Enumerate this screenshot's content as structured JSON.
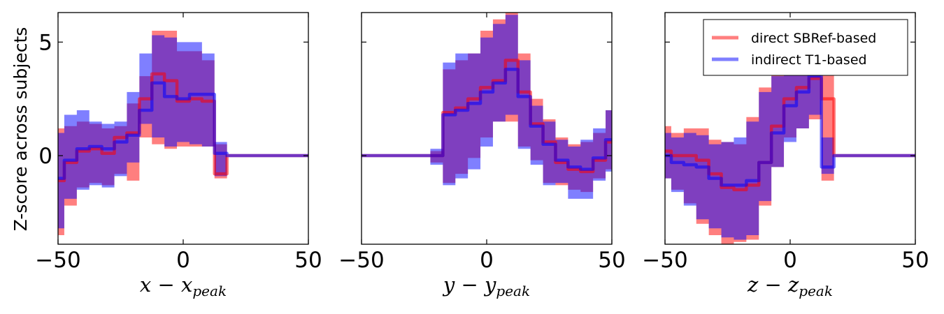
{
  "figure": {
    "ylabel": "Z-score across subjects"
  },
  "colors": {
    "direct": "#ff0000",
    "indirect": "#0000ff",
    "overlap_fill": "#7d3cc0"
  },
  "chart_data": [
    {
      "type": "area",
      "panel": "x",
      "xlabel": "x − x_peak",
      "xlabel_main": "x − x",
      "xlabel_sub": "peak",
      "xlim": [
        -50,
        50
      ],
      "ylim": [
        -3.9,
        6.3
      ],
      "xticks": [
        -50,
        0,
        50
      ],
      "xtick_labels": [
        "−50",
        "0",
        "50"
      ],
      "yticks": [
        5,
        0
      ],
      "ytick_labels": [
        "5",
        "0"
      ],
      "show_legend": false,
      "x": [
        -50,
        -45,
        -40,
        -35,
        -30,
        -25,
        -20,
        -15,
        -10,
        -5,
        0,
        5,
        10,
        15,
        20,
        25,
        30,
        35,
        40,
        45,
        50
      ],
      "series": [
        {
          "name": "direct SBRef-based",
          "mean": [
            -1.1,
            -0.3,
            0.2,
            0.3,
            0.1,
            0.8,
            1.0,
            2.5,
            3.6,
            3.3,
            2.4,
            2.5,
            2.4,
            -0.8,
            0,
            0,
            0,
            0,
            0,
            0,
            0
          ],
          "upper": [
            1.2,
            1.3,
            1.5,
            1.4,
            1.2,
            1.3,
            2.3,
            3.5,
            5.5,
            5.5,
            4.6,
            4.6,
            4.2,
            0.5,
            0,
            0,
            0,
            0,
            0,
            0,
            0
          ],
          "lower": [
            -3.5,
            -2.2,
            -1.4,
            -1.2,
            -1.3,
            -0.8,
            -1.1,
            0.8,
            0.5,
            0.3,
            0.4,
            0.4,
            0.4,
            -1.0,
            0,
            0,
            0,
            0,
            0,
            0,
            0
          ]
        },
        {
          "name": "indirect T1-based",
          "mean": [
            -1.0,
            -0.2,
            0.3,
            0.4,
            0.3,
            0.6,
            0.9,
            2.0,
            3.2,
            2.6,
            2.5,
            2.7,
            2.7,
            0.1,
            0,
            0,
            0,
            0,
            0,
            0,
            0
          ],
          "upper": [
            1.0,
            1.8,
            2.0,
            1.5,
            1.4,
            1.5,
            2.8,
            4.5,
            5.3,
            5.2,
            5.0,
            5.0,
            4.5,
            0.6,
            0,
            0,
            0,
            0,
            0,
            0,
            0
          ],
          "lower": [
            -3.2,
            -1.9,
            -1.5,
            -1.3,
            -1.4,
            -0.9,
            -0.3,
            1.4,
            0.8,
            0.4,
            0.6,
            0.5,
            0.4,
            -0.9,
            0,
            0,
            0,
            0,
            0,
            0,
            0
          ]
        }
      ]
    },
    {
      "type": "area",
      "panel": "y",
      "xlabel": "y − y_peak",
      "xlabel_main": "y − y",
      "xlabel_sub": "peak",
      "xlim": [
        -50,
        50
      ],
      "ylim": [
        -3.9,
        6.3
      ],
      "xticks": [
        -50,
        0,
        50
      ],
      "xtick_labels": [
        "−50",
        "0",
        "50"
      ],
      "yticks": [],
      "ytick_labels": [],
      "show_legend": false,
      "x": [
        -50,
        -45,
        -40,
        -35,
        -30,
        -25,
        -20,
        -15,
        -10,
        -5,
        0,
        5,
        10,
        15,
        20,
        25,
        30,
        35,
        40,
        45,
        50
      ],
      "series": [
        {
          "name": "direct SBRef-based",
          "mean": [
            0,
            0,
            0,
            0,
            0,
            0,
            0,
            1.9,
            2.1,
            2.5,
            3.0,
            3.3,
            4.2,
            2.8,
            1.4,
            0.6,
            -0.3,
            -0.6,
            -0.7,
            -0.2,
            0.6
          ],
          "upper": [
            0,
            0,
            0,
            0,
            0,
            0,
            0.2,
            3.8,
            4.2,
            4.5,
            5.5,
            6.0,
            6.3,
            4.5,
            2.5,
            1.6,
            0.8,
            0.5,
            0.6,
            1.0,
            2.0
          ],
          "lower": [
            0,
            0,
            0,
            0,
            0,
            0,
            -0.3,
            -1.2,
            -0.8,
            -0.1,
            0.8,
            1.5,
            1.5,
            0.4,
            -0.2,
            -1.2,
            -1.3,
            -1.5,
            -1.6,
            -1.0,
            -0.6
          ]
        },
        {
          "name": "indirect T1-based",
          "mean": [
            0,
            0,
            0,
            0,
            0,
            0,
            0,
            1.8,
            2.0,
            2.3,
            2.8,
            3.2,
            3.8,
            2.6,
            1.3,
            0.5,
            -0.2,
            -0.5,
            -0.6,
            -0.1,
            0.7
          ],
          "upper": [
            0,
            0,
            0,
            0,
            0,
            0,
            0.3,
            4.1,
            4.5,
            4.5,
            5.2,
            5.8,
            6.2,
            4.2,
            2.2,
            1.5,
            0.7,
            0.4,
            0.7,
            1.2,
            2.0
          ],
          "lower": [
            0,
            0,
            0,
            0,
            0,
            0,
            -0.4,
            -1.3,
            -1.0,
            -0.6,
            0.4,
            1.5,
            1.8,
            0.3,
            -0.4,
            -1.3,
            -1.2,
            -1.9,
            -1.9,
            -1.1,
            -0.7
          ]
        }
      ]
    },
    {
      "type": "area",
      "panel": "z",
      "xlabel": "z − z_peak",
      "xlabel_main": "z − z",
      "xlabel_sub": "peak",
      "xlim": [
        -50,
        50
      ],
      "ylim": [
        -3.9,
        6.3
      ],
      "xticks": [
        -50,
        0,
        50
      ],
      "xtick_labels": [
        "−50",
        "0",
        "50"
      ],
      "yticks": [],
      "ytick_labels": [],
      "show_legend": true,
      "legend_loc": "upper right",
      "x": [
        -50,
        -45,
        -40,
        -35,
        -30,
        -25,
        -20,
        -15,
        -10,
        -5,
        0,
        5,
        10,
        15,
        20,
        25,
        30,
        35,
        40,
        45,
        50
      ],
      "series": [
        {
          "name": "direct SBRef-based",
          "mean": [
            0.2,
            0.0,
            0.0,
            -0.2,
            -0.8,
            -1.4,
            -1.5,
            -1.3,
            -0.3,
            1.3,
            2.5,
            3.0,
            3.4,
            2.5,
            0,
            0,
            0,
            0,
            0,
            0,
            0
          ],
          "upper": [
            1.3,
            1.0,
            1.2,
            1.2,
            0.7,
            0.6,
            0.5,
            1.7,
            3.0,
            4.0,
            5.3,
            6.0,
            5.9,
            3.8,
            0,
            0,
            0,
            0,
            0,
            0,
            0
          ],
          "lower": [
            -1.0,
            -1.5,
            -2.1,
            -3.0,
            -3.5,
            -3.9,
            -3.8,
            -3.7,
            -2.2,
            -0.5,
            0.8,
            1.2,
            1.6,
            -1.1,
            0,
            0,
            0,
            0,
            0,
            0,
            0
          ]
        },
        {
          "name": "indirect T1-based",
          "mean": [
            0.0,
            -0.3,
            -0.4,
            -0.5,
            -1.0,
            -1.3,
            -1.3,
            -1.1,
            -0.3,
            1.0,
            2.2,
            2.8,
            3.5,
            -0.5,
            0,
            0,
            0,
            0,
            0,
            0,
            0
          ],
          "upper": [
            1.0,
            0.8,
            1.0,
            0.9,
            0.5,
            0.6,
            0.8,
            1.5,
            2.8,
            3.5,
            4.5,
            5.5,
            5.8,
            0.8,
            0,
            0,
            0,
            0,
            0,
            0,
            0
          ],
          "lower": [
            -1.0,
            -1.6,
            -2.2,
            -2.8,
            -3.2,
            -3.6,
            -3.7,
            -3.5,
            -2.0,
            -0.5,
            0.6,
            1.2,
            1.8,
            -0.8,
            0,
            0,
            0,
            0,
            0,
            0,
            0
          ]
        }
      ]
    }
  ]
}
